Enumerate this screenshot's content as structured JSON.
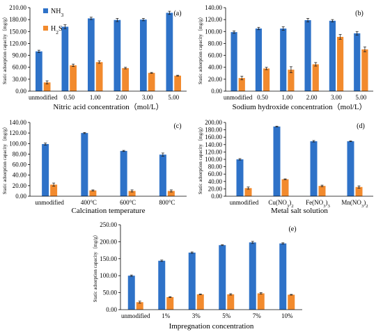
{
  "colors": {
    "nh3": "#2e72c8",
    "h2s": "#f28a2d",
    "error": "#222222"
  },
  "legend": {
    "nh3": "NH3",
    "h2s": "H2S"
  },
  "chart_data": [
    {
      "type": "bar",
      "panel_label": "(a)",
      "xlabel": "Nitric acid concentration（mol/L）",
      "ylabel": "Static adsorption capacity（mg/g）",
      "categories": [
        "unmodified",
        "0.50",
        "1.00",
        "2.00",
        "3.00",
        "5.00"
      ],
      "ylim": [
        0,
        210
      ],
      "yticks": [
        "0.00",
        "30.00",
        "60.00",
        "90.00",
        "120.00",
        "150.00",
        "180.00",
        "210.00"
      ],
      "legend_position": "top-left",
      "series": [
        {
          "name": "NH3",
          "values": [
            100,
            162,
            183,
            179,
            180,
            197
          ],
          "errors": [
            3,
            5,
            3,
            4,
            3,
            4
          ]
        },
        {
          "name": "H2S",
          "values": [
            22,
            65,
            73,
            58,
            46,
            39
          ],
          "errors": [
            4,
            3,
            3,
            2,
            1,
            1
          ]
        }
      ]
    },
    {
      "type": "bar",
      "panel_label": "(b)",
      "xlabel": "Sodium hydroxide concentration（mol/L）",
      "ylabel": "Static adsorption capacity（mg/g）",
      "categories": [
        "unmodified",
        "0.50",
        "1.00",
        "2.00",
        "3.00",
        "5.00"
      ],
      "ylim": [
        0,
        140
      ],
      "yticks": [
        "0.00",
        "20.00",
        "40.00",
        "60.00",
        "80.00",
        "100.00",
        "120.00",
        "140.00"
      ],
      "series": [
        {
          "name": "NH3",
          "values": [
            99,
            105,
            105,
            119,
            118,
            97
          ],
          "errors": [
            2,
            2,
            3,
            3,
            2,
            3
          ]
        },
        {
          "name": "H2S",
          "values": [
            22,
            38,
            36,
            45,
            91,
            70
          ],
          "errors": [
            3,
            2,
            5,
            3,
            4,
            4
          ]
        }
      ]
    },
    {
      "type": "bar",
      "panel_label": "(c)",
      "xlabel": "Calcination temperature",
      "ylabel": "Static adsorption capacity（mg/g）",
      "categories": [
        "unmodified",
        "400°C",
        "600°C",
        "800°C"
      ],
      "ylim": [
        0,
        140
      ],
      "yticks": [
        "0.00",
        "20.00",
        "40.00",
        "60.00",
        "80.00",
        "100.00",
        "120.00",
        "140.00"
      ],
      "series": [
        {
          "name": "NH3",
          "values": [
            99,
            120,
            86,
            79
          ],
          "errors": [
            2,
            1,
            1,
            3
          ]
        },
        {
          "name": "H2S",
          "values": [
            22,
            11,
            10,
            10
          ],
          "errors": [
            3,
            1,
            2,
            2
          ]
        }
      ]
    },
    {
      "type": "bar",
      "panel_label": "(d)",
      "xlabel": "Metal salt solution",
      "ylabel": "Static adsorption capacity（mg/g）",
      "categories": [
        "unmodified",
        "Cu(NO3)2",
        "Fe(NO3)3",
        "Mn(NO3)2"
      ],
      "ylim": [
        0,
        200
      ],
      "yticks": [
        "0.00",
        "20.00",
        "40.00",
        "60.00",
        "80.00",
        "100.00",
        "120.00",
        "140.00",
        "160.00",
        "180.00",
        "200.00"
      ],
      "series": [
        {
          "name": "NH3",
          "values": [
            100,
            189,
            149,
            149
          ],
          "errors": [
            2,
            1,
            2,
            1
          ]
        },
        {
          "name": "H2S",
          "values": [
            22,
            46,
            28,
            25
          ],
          "errors": [
            3,
            1,
            2,
            3
          ]
        }
      ]
    },
    {
      "type": "bar",
      "panel_label": "(e)",
      "xlabel": "Impregnation concentration",
      "ylabel": "Static adsorption capacity（mg/g）",
      "categories": [
        "unmodified",
        "1%",
        "3%",
        "5%",
        "7%",
        "10%"
      ],
      "ylim": [
        0,
        250
      ],
      "yticks": [
        "0.00",
        "50.00",
        "100.00",
        "150.00",
        "200.00",
        "250.00"
      ],
      "series": [
        {
          "name": "NH3",
          "values": [
            100,
            144,
            168,
            190,
            198,
            195
          ],
          "errors": [
            2,
            2,
            2,
            1,
            3,
            2
          ]
        },
        {
          "name": "H2S",
          "values": [
            22,
            37,
            45,
            45,
            48,
            44
          ],
          "errors": [
            3,
            1,
            1,
            2,
            2,
            1
          ]
        }
      ]
    }
  ]
}
